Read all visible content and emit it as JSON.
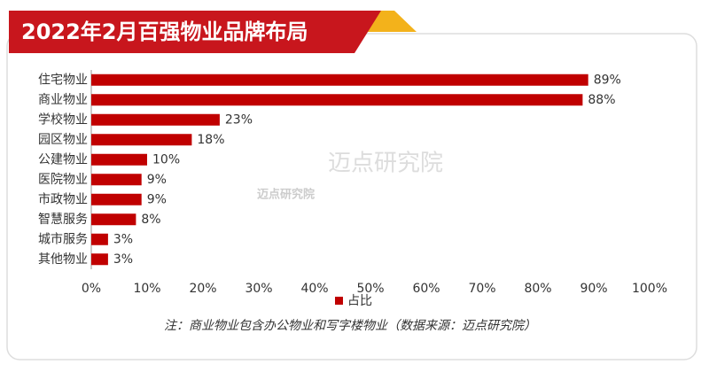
{
  "chart_data": {
    "type": "bar",
    "orientation": "horizontal",
    "title": "2022年2月百强物业品牌布局",
    "categories": [
      "住宅物业",
      "商业物业",
      "学校物业",
      "园区物业",
      "公建物业",
      "医院物业",
      "市政物业",
      "智慧服务",
      "城市服务",
      "其他物业"
    ],
    "series": [
      {
        "name": "占比",
        "color": "#c00000",
        "values": [
          89,
          88,
          23,
          18,
          10,
          9,
          9,
          8,
          3,
          3
        ],
        "value_labels": [
          "89%",
          "88%",
          "23%",
          "18%",
          "10%",
          "9%",
          "9%",
          "8%",
          "3%",
          "3%"
        ]
      }
    ],
    "xlim": [
      0,
      100
    ],
    "xticks": [
      {
        "value": 0,
        "label": "0%"
      },
      {
        "value": 10,
        "label": "10%"
      },
      {
        "value": 20,
        "label": "20%"
      },
      {
        "value": 30,
        "label": "30%"
      },
      {
        "value": 40,
        "label": "40%"
      },
      {
        "value": 50,
        "label": "50%"
      },
      {
        "value": 60,
        "label": "60%"
      },
      {
        "value": 70,
        "label": "70%"
      },
      {
        "value": 80,
        "label": "80%"
      },
      {
        "value": 90,
        "label": "90%"
      },
      {
        "value": 100,
        "label": "100%"
      }
    ],
    "note": "注：商业物业包含办公物业和写字楼物业（数据来源：迈点研究院）",
    "watermark": "迈点研究院"
  }
}
